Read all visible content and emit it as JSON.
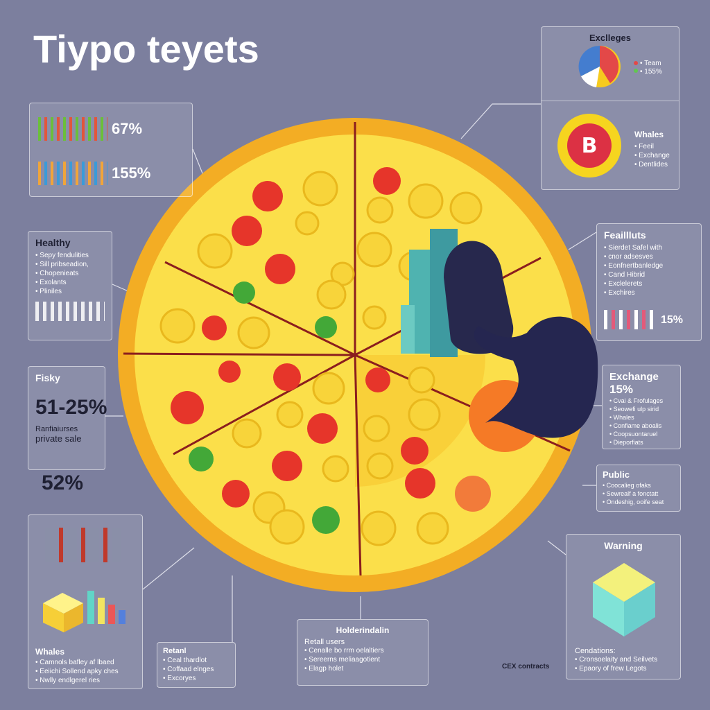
{
  "title": "Tiypo teyets",
  "people_panel": {
    "stats": [
      "67%",
      "155%"
    ]
  },
  "exchanges_panel": {
    "title": "Exclleges",
    "legend": [
      "Team",
      "155%"
    ]
  },
  "whales_panel": {
    "title": "Whales",
    "items": [
      "Feeil",
      "Exchange",
      "Dentlides"
    ]
  },
  "healthy_panel": {
    "title": "Healthy",
    "items": [
      "Sepy fendulities",
      "Sill pribseadion,",
      "Chopenieats",
      "Exolants",
      "Pliniles"
    ]
  },
  "feaillluts_panel": {
    "title": "Feaillluts",
    "items": [
      "Sierdet Safel with",
      "cnor adsesves",
      "Eonfnertbanledge",
      "Cand Hibrid",
      "Exclelerets",
      "Exchires"
    ],
    "stat": "15%"
  },
  "fisky_panel": {
    "title": "Fisky",
    "stat": "51-25%",
    "items": [
      "Ranfiaiurses",
      "private sale"
    ]
  },
  "standalone_stat": "52%",
  "exchange_panel": {
    "title": "Exchange",
    "stat": "15%",
    "items": [
      "Cvai & Frofulages",
      "Seowefi ulp sirid",
      "Whales",
      "Confiame aboalis",
      "Coopsuontaruel",
      "Dieporfiats"
    ]
  },
  "public_panel": {
    "title": "Public",
    "items": [
      "Coocalieg ofaks",
      "Sewrealf a fonctatt",
      "Ondeshig, ooife seat"
    ]
  },
  "warning_panel": {
    "title": "Warning",
    "items": [
      "Cendations:",
      "Cronsoelaity and Seilvets",
      "Epaory of frew Legots"
    ]
  },
  "bottom_whales_panel": {
    "title": "Whales",
    "items": [
      "Camnols bafley af lbaed",
      "Eeiichi Sollend apky ches",
      "Nwlly endlgerel ries"
    ]
  },
  "retail_panel": {
    "title": "Retanl",
    "items": [
      "Ceal thardlot",
      "Coffaad elnges",
      "Excoryes"
    ]
  },
  "holders_panel": {
    "title": "Holderindalin",
    "items": [
      "Retall users",
      "Cenalle bo rrm oelaltiers",
      "Sereerns meliaagotient",
      "Elagp holet"
    ]
  },
  "cex_label": "CEX contracts"
}
